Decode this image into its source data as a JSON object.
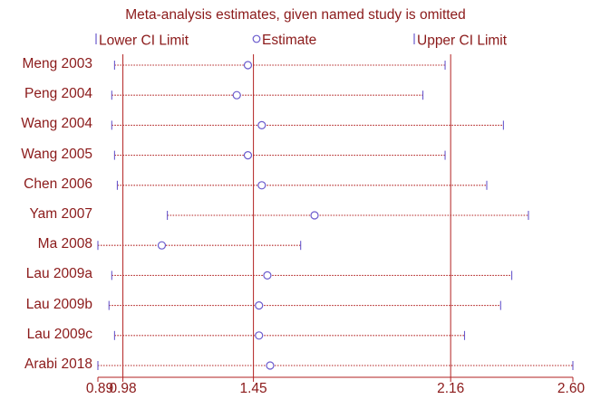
{
  "chart_data": {
    "type": "forest",
    "title": "Meta-analysis estimates, given named study is omitted",
    "legend": {
      "lower": "Lower CI Limit",
      "estimate": "Estimate",
      "upper": "Upper CI Limit",
      "placement": "top"
    },
    "xticks": [
      "0.89",
      "0.98",
      "1.45",
      "2.16",
      "2.60"
    ],
    "xlim": [
      0.89,
      2.6
    ],
    "reference_lines": [
      0.98,
      1.45,
      2.16
    ],
    "studies": [
      {
        "name": "Meng 2003",
        "lower": 0.95,
        "estimate": 1.43,
        "upper": 2.14
      },
      {
        "name": "Peng 2004",
        "lower": 0.94,
        "estimate": 1.39,
        "upper": 2.06
      },
      {
        "name": "Wang 2004",
        "lower": 0.94,
        "estimate": 1.48,
        "upper": 2.35
      },
      {
        "name": "Wang 2005",
        "lower": 0.95,
        "estimate": 1.43,
        "upper": 2.14
      },
      {
        "name": "Chen 2006",
        "lower": 0.96,
        "estimate": 1.48,
        "upper": 2.29
      },
      {
        "name": "Yam 2007",
        "lower": 1.14,
        "estimate": 1.67,
        "upper": 2.44
      },
      {
        "name": "Ma 2008",
        "lower": 0.89,
        "estimate": 1.12,
        "upper": 1.62
      },
      {
        "name": "Lau 2009a",
        "lower": 0.94,
        "estimate": 1.5,
        "upper": 2.38
      },
      {
        "name": "Lau 2009b",
        "lower": 0.93,
        "estimate": 1.47,
        "upper": 2.34
      },
      {
        "name": "Lau 2009c",
        "lower": 0.95,
        "estimate": 1.47,
        "upper": 2.21
      },
      {
        "name": "Arabi 2018",
        "lower": 0.89,
        "estimate": 1.51,
        "upper": 2.6
      }
    ],
    "colors": {
      "text": "#8b1a1a",
      "lines": "#b22222",
      "markers": "#6a5acd"
    }
  }
}
